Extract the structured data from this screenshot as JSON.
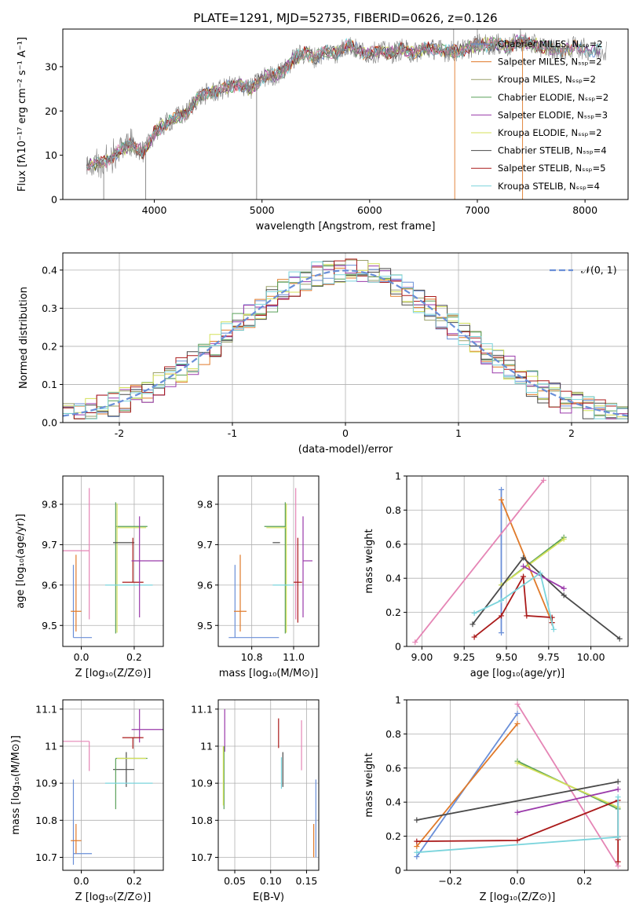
{
  "figure_title": "PLATE=1291, MJD=52735, FIBERID=0626, z=0.126",
  "colors": {
    "chabrier_miles": "#6a8fd8",
    "salpeter_miles": "#e07a2a",
    "kroupa_miles": "#9aa06a",
    "chabrier_elodie": "#5aa05a",
    "salpeter_elodie": "#9a3aaa",
    "kroupa_elodie": "#d4e05a",
    "chabrier_stelib": "#4a4a4a",
    "salpeter_stelib": "#aa1a1a",
    "kroupa_stelib": "#7ad4dc",
    "pink": "#e585b5",
    "grid": "#b0b0b0"
  },
  "chart_data": [
    {
      "id": "spectrum",
      "type": "line",
      "xlabel": "wavelength [Angstrom, rest frame]",
      "ylabel": "Flux [fλ10⁻¹⁷ erg cm⁻² s⁻¹ A⁻¹]",
      "xlim": [
        3150,
        8400
      ],
      "ylim": [
        0,
        38.5
      ],
      "xticks": [
        4000,
        5000,
        6000,
        7000,
        8000
      ],
      "yticks": [
        0,
        10,
        20,
        30
      ],
      "grid": false,
      "legend_position": "top-right",
      "legend": [
        {
          "text": "Chabrier MILES, Nₛₛₚ=2",
          "color": "#6a8fd8"
        },
        {
          "text": "Salpeter MILES, Nₛₛₚ=2",
          "color": "#e07a2a"
        },
        {
          "text": "Kroupa MILES, Nₛₛₚ=2",
          "color": "#9aa06a"
        },
        {
          "text": "Chabrier ELODIE, Nₛₛₚ=2",
          "color": "#5aa05a"
        },
        {
          "text": "Salpeter ELODIE, Nₛₛₚ=3",
          "color": "#9a3aaa"
        },
        {
          "text": "Kroupa ELODIE, Nₛₛₚ=2",
          "color": "#d4e05a"
        },
        {
          "text": "Chabrier STELIB, Nₛₛₚ=4",
          "color": "#4a4a4a"
        },
        {
          "text": "Salpeter STELIB, Nₛₛₚ=5",
          "color": "#aa1a1a"
        },
        {
          "text": "Kroupa STELIB, Nₛₛₚ=4",
          "color": "#7ad4dc"
        }
      ],
      "continuum": {
        "x": [
          3370,
          3500,
          3600,
          3700,
          3800,
          3900,
          4000,
          4100,
          4200,
          4300,
          4400,
          4500,
          4600,
          4700,
          4800,
          4900,
          5000,
          5100,
          5200,
          5300,
          5400,
          5500,
          5600,
          5700,
          5800,
          5900,
          6000,
          6100,
          6200,
          6300,
          6400,
          6500,
          6600,
          6700,
          6800,
          6900,
          7000,
          7100,
          7200,
          7300,
          7400,
          7500,
          7600,
          7700,
          7800,
          7900,
          8000,
          8100,
          8200
        ],
        "y": [
          7.5,
          8,
          9.5,
          11.5,
          12.5,
          10.5,
          15,
          17,
          18.5,
          19.5,
          23,
          24,
          24.5,
          25.5,
          26,
          25,
          27.5,
          28,
          29,
          32,
          33,
          32,
          33.5,
          33,
          35,
          33.5,
          33,
          33.5,
          33,
          34,
          33,
          34,
          34,
          33.5,
          33.5,
          34,
          35,
          35,
          35,
          34.5,
          36,
          35,
          34.5,
          34,
          33.5,
          34.5,
          34,
          33.5,
          34
        ]
      },
      "data_noise_amplitude": 2.5,
      "spikes_up": [
        6780,
        7000,
        7400
      ],
      "spikes_down": [
        3530,
        3920,
        4950,
        6790,
        7420
      ]
    },
    {
      "id": "residual-histogram",
      "type": "histogram",
      "xlabel": "(data-model)/error",
      "ylabel": "Normed distribution",
      "xlim": [
        -2.5,
        2.5
      ],
      "ylim": [
        0,
        0.445
      ],
      "xticks": [
        -2,
        -1,
        0,
        1,
        2
      ],
      "yticks": [
        0.0,
        0.1,
        0.2,
        0.3,
        0.4
      ],
      "grid": true,
      "bin_width": 0.1,
      "legend_position": "top-right",
      "legend": [
        {
          "text": "𝒩(0, 1)",
          "color": "#6a8fd8"
        }
      ],
      "reference_curve": "normal(0,1)"
    },
    {
      "id": "age-vs-metallicity",
      "type": "errorbar",
      "xlabel": "Z [log₁₀(Z/Z⊙)]",
      "ylabel": "age  [log₁₀(age/yr)]",
      "xlim": [
        -0.07,
        0.31
      ],
      "ylim": [
        9.448,
        9.87
      ],
      "xticks": [
        0.0,
        0.2
      ],
      "xticklabels": [
        "0.0",
        "0.2"
      ],
      "yticks": [
        9.5,
        9.6,
        9.7,
        9.8
      ],
      "grid": true,
      "points": [
        {
          "color": "#6a8fd8",
          "x": -0.03,
          "xerr": [
            0.0,
            0.07
          ],
          "y": 9.47,
          "yerr": [
            0.0,
            0.18
          ]
        },
        {
          "color": "#e07a2a",
          "x": -0.02,
          "xerr": [
            0.02,
            0.02
          ],
          "y": 9.535,
          "yerr": [
            0.05,
            0.14
          ]
        },
        {
          "color": "#e585b5",
          "x": 0.03,
          "xerr": [
            0.12,
            0.0
          ],
          "y": 9.685,
          "yerr": [
            0.17,
            0.155
          ]
        },
        {
          "color": "#5aa05a",
          "x": 0.13,
          "xerr": [
            0.0,
            0.12
          ],
          "y": 9.745,
          "yerr": [
            0.265,
            0.06
          ]
        },
        {
          "color": "#d4e05a",
          "x": 0.135,
          "xerr": [
            0.0,
            0.11
          ],
          "y": 9.742,
          "yerr": [
            0.26,
            0.06
          ]
        },
        {
          "color": "#4a4a4a",
          "x": 0.17,
          "xerr": [
            0.05,
            0.03
          ],
          "y": 9.705,
          "yerr": [
            0.0,
            0.0
          ]
        },
        {
          "color": "#aa1a1a",
          "x": 0.195,
          "xerr": [
            0.04,
            0.04
          ],
          "y": 9.607,
          "yerr": [
            0.0,
            0.11
          ]
        },
        {
          "color": "#7ad4dc",
          "x": 0.18,
          "xerr": [
            0.09,
            0.09
          ],
          "y": 9.6,
          "yerr": [
            0.0,
            0.0
          ]
        },
        {
          "color": "#9a3aaa",
          "x": 0.22,
          "xerr": [
            0.03,
            0.09
          ],
          "y": 9.66,
          "yerr": [
            0.14,
            0.11
          ]
        }
      ]
    },
    {
      "id": "age-vs-mass",
      "type": "errorbar",
      "xlabel": "mass [log₁₀(M/M⊙)]",
      "ylabel": "",
      "xlim": [
        10.64,
        11.12
      ],
      "ylim": [
        9.448,
        9.87
      ],
      "xticks": [
        10.8,
        11.0
      ],
      "xticklabels": [
        "10.8",
        "11.0"
      ],
      "yticks": [
        9.5,
        9.6,
        9.7,
        9.8
      ],
      "grid": true,
      "points": [
        {
          "color": "#6a8fd8",
          "x": 10.72,
          "xerr": [
            0.03,
            0.21
          ],
          "y": 9.47,
          "yerr": [
            0.0,
            0.18
          ]
        },
        {
          "color": "#e07a2a",
          "x": 10.745,
          "xerr": [
            0.03,
            0.03
          ],
          "y": 9.535,
          "yerr": [
            0.05,
            0.14
          ]
        },
        {
          "color": "#5aa05a",
          "x": 10.96,
          "xerr": [
            0.1,
            0.0
          ],
          "y": 9.745,
          "yerr": [
            0.265,
            0.06
          ]
        },
        {
          "color": "#d4e05a",
          "x": 10.965,
          "xerr": [
            0.095,
            0.0
          ],
          "y": 9.742,
          "yerr": [
            0.26,
            0.06
          ]
        },
        {
          "color": "#4a4a4a",
          "x": 10.935,
          "xerr": [
            0.035,
            0.0
          ],
          "y": 9.705,
          "yerr": [
            0.0,
            0.0
          ]
        },
        {
          "color": "#7ad4dc",
          "x": 10.9,
          "xerr": [
            0.0,
            0.1
          ],
          "y": 9.6,
          "yerr": [
            0.0,
            0.0
          ]
        },
        {
          "color": "#e585b5",
          "x": 11.01,
          "xerr": [
            0.0,
            0.0
          ],
          "y": 9.685,
          "yerr": [
            0.17,
            0.155
          ]
        },
        {
          "color": "#aa1a1a",
          "x": 11.02,
          "xerr": [
            0.02,
            0.02
          ],
          "y": 9.607,
          "yerr": [
            0.1,
            0.11
          ]
        },
        {
          "color": "#9a3aaa",
          "x": 11.045,
          "xerr": [
            0.0,
            0.045
          ],
          "y": 9.66,
          "yerr": [
            0.14,
            0.11
          ]
        }
      ]
    },
    {
      "id": "mass-weight-vs-age",
      "type": "line",
      "xlabel": "age  [log₁₀(age/yr)]",
      "ylabel": "mass weight",
      "xlim": [
        8.91,
        10.22
      ],
      "ylim": [
        0,
        1.0
      ],
      "xticks": [
        9.0,
        9.25,
        9.5,
        9.75,
        10.0
      ],
      "xticklabels": [
        "9.00",
        "9.25",
        "9.50",
        "9.75",
        "10.00"
      ],
      "yticks": [
        0.0,
        0.2,
        0.4,
        0.6,
        0.8,
        1.0
      ],
      "grid": true,
      "series": [
        {
          "color": "#6a8fd8",
          "x": [
            9.47,
            9.47
          ],
          "y": [
            0.08,
            0.92
          ]
        },
        {
          "color": "#e07a2a",
          "x": [
            9.47,
            9.77
          ],
          "y": [
            0.86,
            0.14
          ]
        },
        {
          "color": "#e585b5",
          "x": [
            8.96,
            9.72
          ],
          "y": [
            0.025,
            0.975
          ]
        },
        {
          "color": "#5aa05a",
          "x": [
            9.47,
            9.84
          ],
          "y": [
            0.36,
            0.64
          ]
        },
        {
          "color": "#d4e05a",
          "x": [
            9.47,
            9.84
          ],
          "y": [
            0.36,
            0.63
          ]
        },
        {
          "color": "#4a4a4a",
          "x": [
            9.3,
            9.6,
            9.84,
            10.17
          ],
          "y": [
            0.13,
            0.52,
            0.3,
            0.045
          ]
        },
        {
          "color": "#9a3aaa",
          "x": [
            9.6,
            9.84
          ],
          "y": [
            0.47,
            0.34
          ]
        },
        {
          "color": "#aa1a1a",
          "x": [
            9.31,
            9.47,
            9.6,
            9.62,
            9.77,
            9.77
          ],
          "y": [
            0.055,
            0.18,
            0.41,
            0.18,
            0.17,
            0.14
          ]
        },
        {
          "color": "#7ad4dc",
          "x": [
            9.31,
            9.47,
            9.7,
            9.78
          ],
          "y": [
            0.195,
            0.27,
            0.43,
            0.1
          ]
        }
      ]
    },
    {
      "id": "mass-vs-metallicity",
      "type": "errorbar",
      "xlabel": "Z [log₁₀(Z/Z⊙)]",
      "ylabel": "mass [log₁₀(M/M⊙)]",
      "xlim": [
        -0.07,
        0.31
      ],
      "ylim": [
        10.665,
        11.125
      ],
      "xticks": [
        0.0,
        0.2
      ],
      "xticklabels": [
        "0.0",
        "0.2"
      ],
      "yticks": [
        10.7,
        10.8,
        10.9,
        11.0,
        11.1
      ],
      "grid": true,
      "points": [
        {
          "color": "#6a8fd8",
          "x": -0.03,
          "xerr": [
            0.0,
            0.07
          ],
          "y": 10.71,
          "yerr": [
            0.03,
            0.2
          ]
        },
        {
          "color": "#e07a2a",
          "x": -0.02,
          "xerr": [
            0.02,
            0.02
          ],
          "y": 10.745,
          "yerr": [
            0.035,
            0.045
          ]
        },
        {
          "color": "#e585b5",
          "x": 0.03,
          "xerr": [
            0.12,
            0.0
          ],
          "y": 11.013,
          "yerr": [
            0.08,
            0.0
          ]
        },
        {
          "color": "#9a3aaa",
          "x": 0.22,
          "xerr": [
            0.03,
            0.09
          ],
          "y": 11.045,
          "yerr": [
            0.035,
            0.055
          ]
        },
        {
          "color": "#aa1a1a",
          "x": 0.195,
          "xerr": [
            0.04,
            0.04
          ],
          "y": 11.023,
          "yerr": [
            0.03,
            0.0
          ]
        },
        {
          "color": "#4a4a4a",
          "x": 0.17,
          "xerr": [
            0.05,
            0.03
          ],
          "y": 10.937,
          "yerr": [
            0.047,
            0.047
          ]
        },
        {
          "color": "#5aa05a",
          "x": 0.13,
          "xerr": [
            0.0,
            0.12
          ],
          "y": 10.967,
          "yerr": [
            0.137,
            0.0
          ]
        },
        {
          "color": "#d4e05a",
          "x": 0.135,
          "xerr": [
            0.0,
            0.11
          ],
          "y": 10.967,
          "yerr": [
            0.0,
            0.0
          ]
        },
        {
          "color": "#7ad4dc",
          "x": 0.18,
          "xerr": [
            0.09,
            0.09
          ],
          "y": 10.9,
          "yerr": [
            0.0,
            0.0
          ]
        }
      ]
    },
    {
      "id": "mass-vs-ebv",
      "type": "errorbar",
      "xlabel": "E(B-V)",
      "ylabel": "",
      "xlim": [
        0.027,
        0.167
      ],
      "ylim": [
        10.665,
        11.125
      ],
      "xticks": [
        0.05,
        0.1,
        0.15
      ],
      "xticklabels": [
        "0.05",
        "0.10",
        "0.15"
      ],
      "yticks": [
        10.7,
        10.8,
        10.9,
        11.0,
        11.1
      ],
      "grid": true,
      "points": [
        {
          "color": "#9a3aaa",
          "x": 0.036,
          "xerr": [
            0.0,
            0.0
          ],
          "y": 11.045,
          "yerr": [
            0.06,
            0.055
          ]
        },
        {
          "color": "#5aa05a",
          "x": 0.035,
          "xerr": [
            0.0,
            0.0
          ],
          "y": 10.9,
          "yerr": [
            0.07,
            0.1
          ]
        },
        {
          "color": "#d4e05a",
          "x": 0.034,
          "xerr": [
            0.0,
            0.0
          ],
          "y": 10.9,
          "yerr": [
            0.06,
            0.1
          ]
        },
        {
          "color": "#aa1a1a",
          "x": 0.111,
          "xerr": [
            0.0,
            0.0
          ],
          "y": 11.03,
          "yerr": [
            0.035,
            0.045
          ]
        },
        {
          "color": "#4a4a4a",
          "x": 0.117,
          "xerr": [
            0.0,
            0.0
          ],
          "y": 10.937,
          "yerr": [
            0.047,
            0.047
          ]
        },
        {
          "color": "#7ad4dc",
          "x": 0.115,
          "xerr": [
            0.0,
            0.0
          ],
          "y": 10.925,
          "yerr": [
            0.04,
            0.045
          ]
        },
        {
          "color": "#e585b5",
          "x": 0.143,
          "xerr": [
            0.0,
            0.0
          ],
          "y": 11.0,
          "yerr": [
            0.065,
            0.07
          ]
        },
        {
          "color": "#6a8fd8",
          "x": 0.163,
          "xerr": [
            0.0,
            0.0
          ],
          "y": 10.8,
          "yerr": [
            0.1,
            0.11
          ]
        },
        {
          "color": "#e07a2a",
          "x": 0.16,
          "xerr": [
            0.0,
            0.0
          ],
          "y": 10.745,
          "yerr": [
            0.045,
            0.045
          ]
        }
      ]
    },
    {
      "id": "mass-weight-vs-metallicity",
      "type": "line",
      "xlabel": "Z [log₁₀(Z/Z⊙)]",
      "ylabel": "mass weight",
      "xlim": [
        -0.33,
        0.33
      ],
      "ylim": [
        0,
        1.0
      ],
      "xticks": [
        -0.2,
        0.0,
        0.2
      ],
      "xticklabels": [
        "−0.2",
        "0.0",
        "0.2"
      ],
      "yticks": [
        0.0,
        0.2,
        0.4,
        0.6,
        0.8,
        1.0
      ],
      "grid": true,
      "series": [
        {
          "color": "#6a8fd8",
          "x": [
            -0.3,
            0.0
          ],
          "y": [
            0.08,
            0.92
          ]
        },
        {
          "color": "#e07a2a",
          "x": [
            -0.3,
            0.0
          ],
          "y": [
            0.14,
            0.86
          ]
        },
        {
          "color": "#e585b5",
          "x": [
            0.0,
            0.3
          ],
          "y": [
            0.975,
            0.025
          ]
        },
        {
          "color": "#5aa05a",
          "x": [
            0.0,
            0.3
          ],
          "y": [
            0.64,
            0.36
          ]
        },
        {
          "color": "#d4e05a",
          "x": [
            0.0,
            0.3
          ],
          "y": [
            0.63,
            0.37
          ]
        },
        {
          "color": "#4a4a4a",
          "x": [
            -0.3,
            0.3
          ],
          "y": [
            0.295,
            0.52
          ]
        },
        {
          "color": "#9a3aaa",
          "x": [
            0.0,
            0.3
          ],
          "y": [
            0.34,
            0.475
          ]
        },
        {
          "color": "#aa1a1a",
          "x": [
            -0.3,
            0.0,
            0.3,
            0.3,
            0.3
          ],
          "y": [
            0.17,
            0.175,
            0.41,
            0.18,
            0.05
          ]
        },
        {
          "color": "#7ad4dc",
          "x": [
            -0.3,
            0.3,
            0.3
          ],
          "y": [
            0.105,
            0.195,
            0.43
          ]
        }
      ]
    }
  ]
}
